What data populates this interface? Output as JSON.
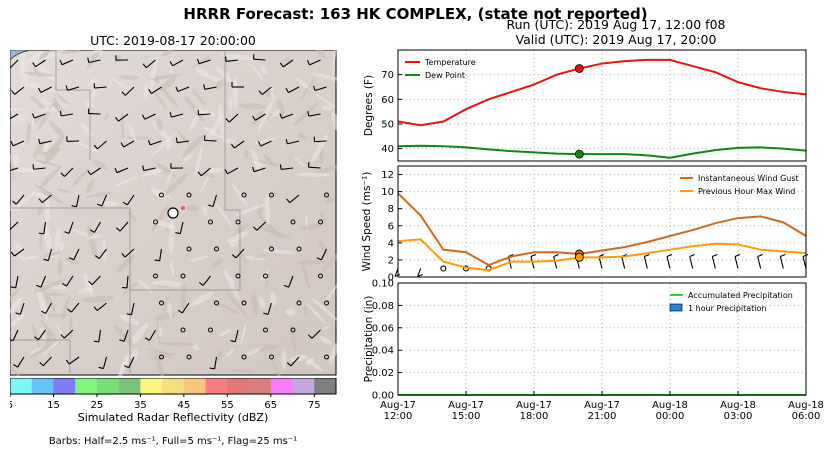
{
  "header": {
    "title": "HRRR Forecast: 163 HK COMPLEX, (state not reported)",
    "run_line": "Run (UTC): 2019 Aug 17, 12:00 f08",
    "valid_line": "Valid (UTC): 2019 Aug 17, 20:00"
  },
  "map": {
    "title": "UTC: 2019-08-17 20:00:00",
    "colorbar_label": "Simulated Radar Reflectivity (dBZ)",
    "colorbar_ticks": [
      "5",
      "15",
      "25",
      "35",
      "45",
      "55",
      "65",
      "75"
    ],
    "colorbar_colors": [
      "#7ff7f7",
      "#66c3f9",
      "#7e7ef7",
      "#7ff77f",
      "#78de78",
      "#7cc37c",
      "#f7f77d",
      "#f5df80",
      "#f6c77d",
      "#f77e7e",
      "#e07777",
      "#d77d7d",
      "#f77ef7",
      "#c5a6e0",
      "#7f7f7f"
    ],
    "barbs_note": "Barbs: Half=2.5 ms⁻¹, Full=5 ms⁻¹, Flag=25 ms⁻¹"
  },
  "x_tick_labels": [
    [
      "Aug-17",
      "12:00"
    ],
    [
      "Aug-17",
      "15:00"
    ],
    [
      "Aug-17",
      "18:00"
    ],
    [
      "Aug-17",
      "21:00"
    ],
    [
      "Aug-18",
      "00:00"
    ],
    [
      "Aug-18",
      "03:00"
    ],
    [
      "Aug-18",
      "06:00"
    ]
  ],
  "chart_data": [
    {
      "type": "line",
      "ylabel": "Degrees (F)",
      "ylim": [
        35,
        80
      ],
      "yticks": [
        40,
        50,
        60,
        70
      ],
      "xlim": [
        0,
        18
      ],
      "grid": true,
      "legend": "top-left",
      "valid_hour": 8,
      "series": [
        {
          "name": "Temperature",
          "color": "#ee1111",
          "x": [
            0,
            1,
            2,
            3,
            4,
            5,
            6,
            7,
            8,
            9,
            10,
            11,
            12,
            13,
            14,
            15,
            16,
            17,
            18
          ],
          "values": [
            51,
            49.5,
            51,
            56,
            60,
            63,
            66,
            70,
            72.5,
            74.5,
            75.5,
            76,
            76,
            73.5,
            71,
            67,
            64.5,
            63,
            62
          ]
        },
        {
          "name": "Dew Point",
          "color": "#118811",
          "x": [
            0,
            1,
            2,
            3,
            4,
            5,
            6,
            7,
            8,
            9,
            10,
            11,
            12,
            13,
            14,
            15,
            16,
            17,
            18
          ],
          "values": [
            41,
            41.2,
            41,
            40.5,
            39.7,
            39,
            38.5,
            38,
            37.8,
            37.8,
            37.8,
            37.3,
            36.3,
            38,
            39.4,
            40.3,
            40.5,
            40,
            39.2
          ]
        }
      ]
    },
    {
      "type": "line",
      "ylabel": "Wind Speed (ms⁻¹)",
      "ylim": [
        0,
        13
      ],
      "yticks": [
        0,
        2,
        4,
        6,
        8,
        10,
        12
      ],
      "xlim": [
        0,
        18
      ],
      "grid": true,
      "legend": "top-right",
      "valid_hour": 8,
      "series": [
        {
          "name": "Instantaneous Wind Gust",
          "color": "#d2691e",
          "x": [
            0,
            1,
            2,
            3,
            4,
            5,
            6,
            7,
            8,
            9,
            10,
            11,
            12,
            13,
            14,
            15,
            16,
            17,
            18
          ],
          "values": [
            9.8,
            7.2,
            3.2,
            2.9,
            1.4,
            2.4,
            2.9,
            2.9,
            2.7,
            3.1,
            3.5,
            4.1,
            4.8,
            5.5,
            6.3,
            6.9,
            7.1,
            6.4,
            4.8
          ]
        },
        {
          "name": "Previous Hour Max Wind",
          "color": "#ff9910",
          "x": [
            0,
            1,
            2,
            3,
            4,
            5,
            6,
            7,
            8,
            9,
            10,
            11,
            12,
            13,
            14,
            15,
            16,
            17,
            18
          ],
          "values": [
            4.2,
            4.4,
            1.8,
            1.1,
            0.8,
            1.8,
            1.8,
            1.9,
            2.3,
            2.3,
            2.4,
            2.8,
            3.2,
            3.6,
            3.9,
            3.8,
            3.2,
            3.0,
            2.8
          ]
        }
      ],
      "wind_barbs_hours": [
        0,
        1,
        2,
        3,
        4,
        5,
        6,
        7,
        8,
        9,
        10,
        11,
        12,
        13,
        14,
        15,
        16,
        17,
        18
      ]
    },
    {
      "type": "bar",
      "ylabel": "Precipitation (in)",
      "ylim": [
        0,
        0.1
      ],
      "yticks": [
        "0.00",
        "0.02",
        "0.04",
        "0.06",
        "0.08",
        "0.10"
      ],
      "xlim": [
        0,
        18
      ],
      "grid": true,
      "legend": "top-right",
      "valid_hour": 8,
      "series": [
        {
          "name": "Accumulated Precipitation",
          "color": "#33cc33",
          "x": [
            0,
            18
          ],
          "values": [
            0,
            0
          ]
        },
        {
          "name": "1 hour Precipitation",
          "color": "#2a82dc",
          "values": [
            0,
            0,
            0,
            0,
            0,
            0,
            0,
            0,
            0,
            0,
            0,
            0,
            0,
            0,
            0,
            0,
            0,
            0,
            0
          ]
        }
      ]
    }
  ]
}
